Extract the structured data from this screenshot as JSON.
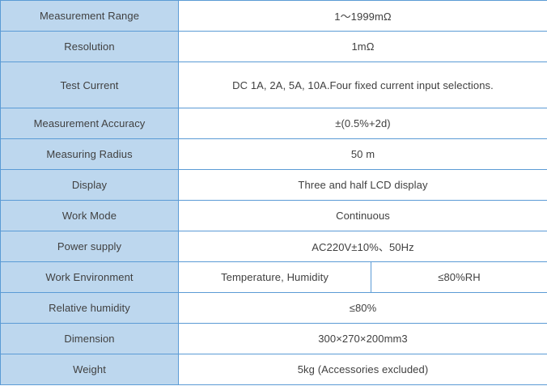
{
  "table": {
    "colors": {
      "label_fill": "#bdd7ee",
      "border": "#5b9bd5",
      "text": "#404040",
      "value_bg": "#ffffff"
    },
    "rows": [
      {
        "label": "Measurement Range",
        "value": "1～1999mΩ"
      },
      {
        "label": "Resolution",
        "value": "1mΩ"
      },
      {
        "label": "Test Current",
        "value": "DC 1A, 2A, 5A, 10A.Four fixed current input selections."
      },
      {
        "label": "Measurement Accuracy",
        "value": "±(0.5%+2d)"
      },
      {
        "label": "Measuring Radius",
        "value": "50 m"
      },
      {
        "label": "Display",
        "value": "Three and half LCD display"
      },
      {
        "label": "Work Mode",
        "value": "Continuous"
      },
      {
        "label": "Power supply",
        "value": "AC220V±10%、50Hz"
      },
      {
        "label": "Work Environment",
        "value": "Temperature, Humidity",
        "value2": "≤80%RH"
      },
      {
        "label": "Relative humidity",
        "value": "≤80%"
      },
      {
        "label": "Dimension",
        "value": "300×270×200mm3"
      },
      {
        "label": "Weight",
        "value": "5kg (Accessories excluded)"
      }
    ]
  }
}
